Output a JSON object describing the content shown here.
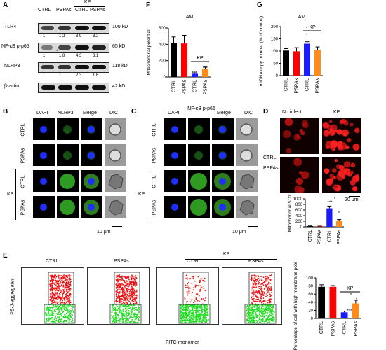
{
  "labels": {
    "A": "A",
    "B": "B",
    "C": "C",
    "D": "D",
    "E": "E",
    "F": "F",
    "G": "G"
  },
  "panelA": {
    "col_labels": [
      "CTRL",
      "PSPAs",
      "CTRL",
      "PSPAs"
    ],
    "kp_label": "KP",
    "rows": [
      {
        "name": "TLR4",
        "kd": "100 kD",
        "values": [
          "1",
          "1.2",
          "3.9",
          "3.2"
        ]
      },
      {
        "name": "NF-κB p-p65",
        "kd": "65 kD",
        "values": [
          "1",
          "1.8",
          "4.3",
          "3.1"
        ]
      },
      {
        "name": "NLRP3",
        "kd": "118 kD",
        "values": [
          "1",
          "1",
          "2.3",
          "1.6"
        ]
      },
      {
        "name": "β-actin",
        "kd": "42 kD",
        "values": []
      }
    ],
    "star": "*"
  },
  "panelB": {
    "cols": [
      "DAPI",
      "NLRP3",
      "Merge",
      "DIC"
    ],
    "rows": [
      "CTRL",
      "PSPAs",
      "CTRL",
      "PSPAs"
    ],
    "kp": "KP",
    "scale": "10 μm"
  },
  "panelC": {
    "cols": [
      "DAPI",
      "NF-κB p-p65",
      "Merge",
      "DIC"
    ],
    "rows": [
      "CTRL",
      "PSPAs",
      "CTRL",
      "PSPAs"
    ],
    "kp": "KP",
    "scale": "10 μm"
  },
  "panelD": {
    "cols": [
      "No infect",
      "KP"
    ],
    "rows": [
      "CTRL",
      "PSPAs"
    ],
    "scale": "20 μm"
  },
  "panelE": {
    "ylabel": "PE-J-aggregates",
    "xlabel": "FITC-monomer",
    "plots": [
      "CTRL",
      "PSPAs",
      "CTRL",
      "PSPAs"
    ],
    "kp": "KP"
  },
  "chart_data": [
    {
      "id": "F",
      "type": "bar",
      "title": "AM",
      "ylabel": "Mitochondrial potential",
      "categories": [
        "CTRL",
        "PSPAs",
        "CTRL",
        "PSPAs"
      ],
      "values": [
        420,
        410,
        40,
        100
      ],
      "errors": [
        70,
        100,
        10,
        20
      ],
      "colors": [
        "#000000",
        "#ff0000",
        "#1a1aff",
        "#ff8c1a"
      ],
      "ylim": [
        0,
        600
      ],
      "yticks": [
        0,
        200,
        400,
        600
      ],
      "group_label": "KP",
      "annotations": [
        "***",
        "***",
        "*"
      ]
    },
    {
      "id": "G",
      "type": "bar",
      "title": "AM",
      "ylabel": "mtDNA copy number (% of control)",
      "categories": [
        "CTRL",
        "PSPAs",
        "CTRL",
        "PSPAs"
      ],
      "values": [
        102,
        99,
        130,
        105
      ],
      "errors": [
        8,
        15,
        8,
        12
      ],
      "colors": [
        "#000000",
        "#ff0000",
        "#1a1aff",
        "#ff8c1a"
      ],
      "ylim": [
        0,
        200
      ],
      "yticks": [
        0,
        50,
        100,
        150,
        200
      ],
      "group_label": "KP",
      "annotations": [
        "*",
        "*"
      ]
    },
    {
      "id": "D",
      "type": "bar",
      "ylabel": "Mitochondrial SOX",
      "categories": [
        "CTRL",
        "PSPAs",
        "CTRL",
        "PSPAs"
      ],
      "values": [
        25,
        20,
        660,
        200
      ],
      "errors": [
        5,
        5,
        80,
        60
      ],
      "colors": [
        "#000000",
        "#ff0000",
        "#1a1aff",
        "#ff8c1a"
      ],
      "ylim": [
        0,
        1000
      ],
      "yticks": [
        0,
        200,
        400,
        600,
        800,
        1000
      ],
      "group_label": "KP",
      "annotations": [
        "***",
        "*",
        "*"
      ]
    },
    {
      "id": "E",
      "type": "bar",
      "ylabel": "Percentage of cell with high membrane potential(%)",
      "categories": [
        "CTRL",
        "PSPAs",
        "CTRL",
        "PSPAs"
      ],
      "values": [
        78,
        78,
        15,
        37
      ],
      "errors": [
        5,
        3,
        3,
        8
      ],
      "colors": [
        "#000000",
        "#ff0000",
        "#1a1aff",
        "#ff8c1a"
      ],
      "ylim": [
        0,
        100
      ],
      "yticks": [
        0,
        20,
        40,
        60,
        80,
        100
      ],
      "group_label": "KP",
      "annotations": [
        "***",
        "*",
        "*"
      ]
    }
  ]
}
